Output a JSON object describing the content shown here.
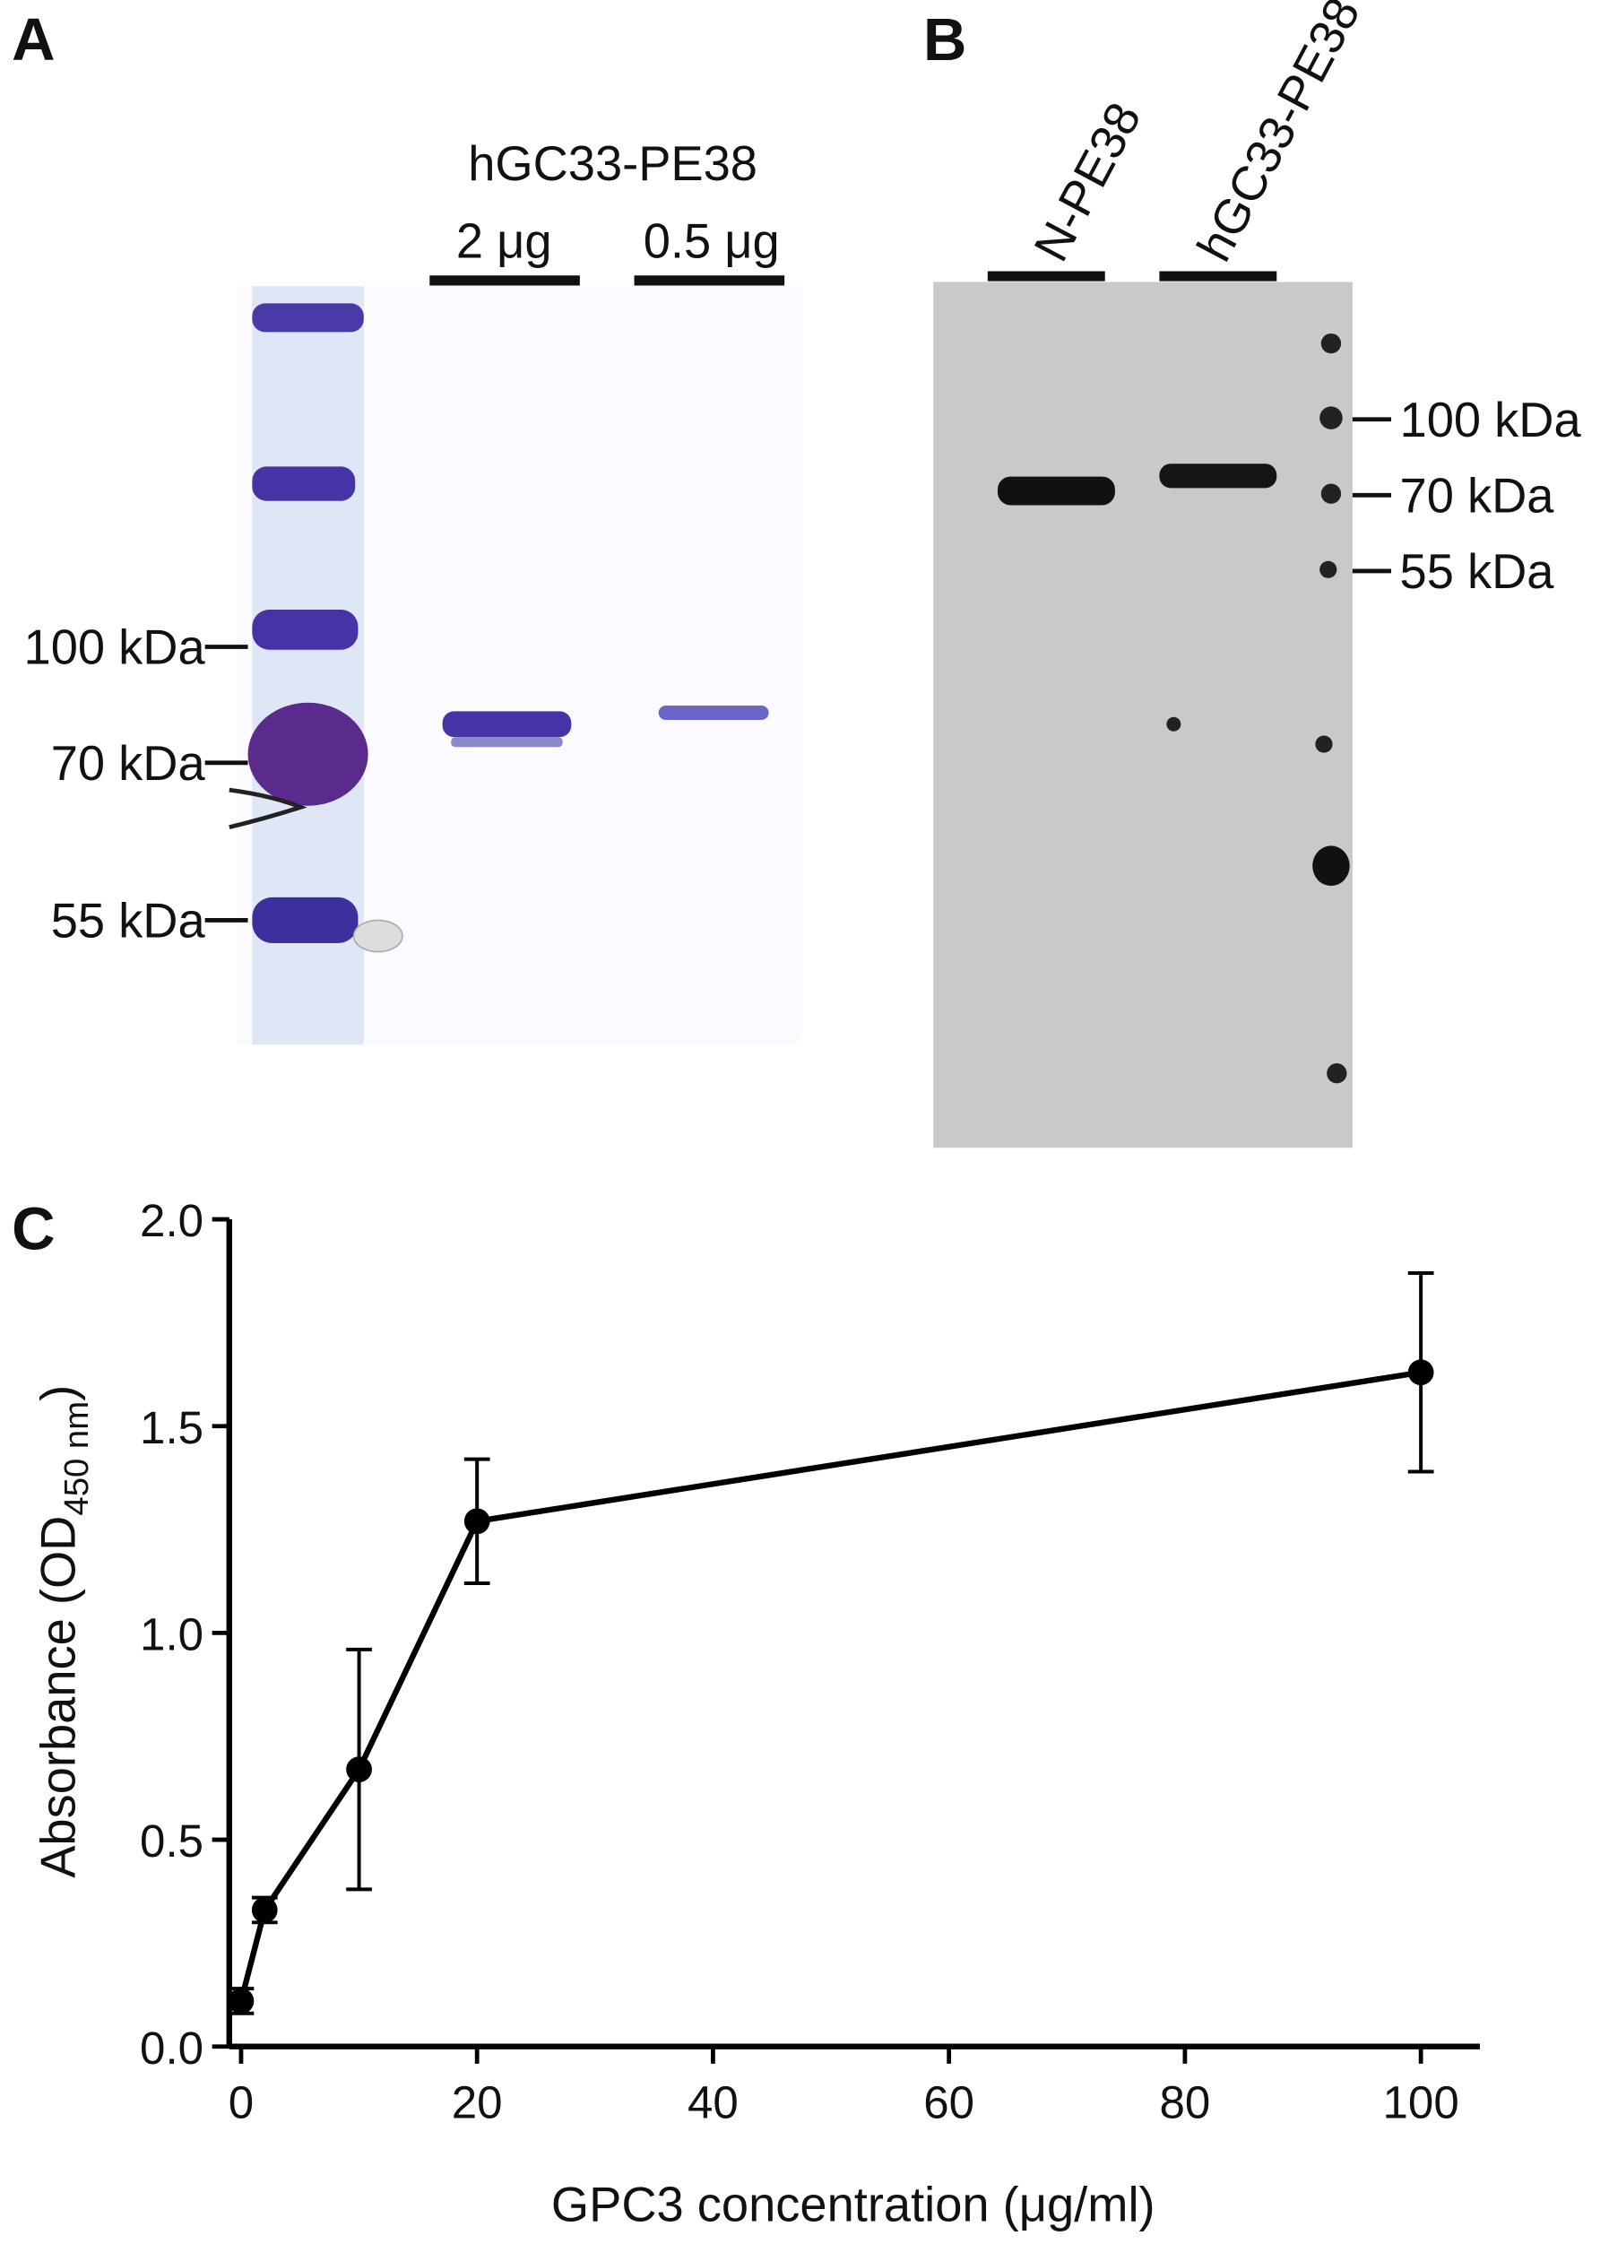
{
  "panel_a": {
    "label": "A",
    "sample": "hGC33-PE38",
    "lanes": [
      "2 μg",
      "0.5 μg"
    ],
    "markers": [
      "100 kDa",
      "70 kDa",
      "55 kDa"
    ]
  },
  "panel_b": {
    "label": "B",
    "lanes": [
      "N-PE38",
      "hGC33-PE38"
    ],
    "markers": [
      "100 kDa",
      "70 kDa",
      "55 kDa"
    ]
  },
  "chart_data": {
    "type": "line",
    "panel_label": "C",
    "xlabel": "GPC3 concentration (μg/ml)",
    "ylabel": "Absorbance (OD",
    "ylabel_sub": "450 nm",
    "ylabel_end": ")",
    "x": [
      0,
      2,
      10,
      20,
      100
    ],
    "values": [
      0.11,
      0.33,
      0.67,
      1.27,
      1.63
    ],
    "errors": [
      0.03,
      0.03,
      0.29,
      0.15,
      0.24
    ],
    "color": "#000000",
    "xlim": [
      -1,
      105
    ],
    "xticks": [
      0,
      20,
      40,
      60,
      80,
      100
    ],
    "ylim": [
      0,
      2.0
    ],
    "yticks": [
      {
        "value": 0,
        "label": "0.0"
      },
      {
        "value": 0.5,
        "label": "0.5"
      },
      {
        "value": 1,
        "label": "1.0"
      },
      {
        "value": 1.5,
        "label": "1.5"
      },
      {
        "value": 2,
        "label": "2.0"
      }
    ]
  }
}
